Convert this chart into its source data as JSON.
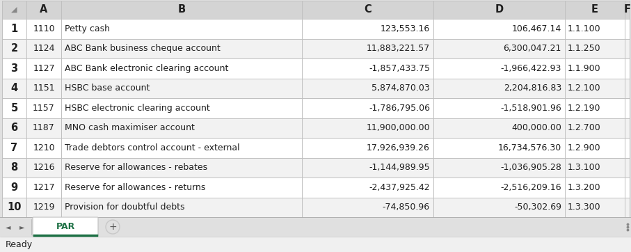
{
  "col_headers": [
    "A",
    "B",
    "C",
    "D",
    "E",
    "F"
  ],
  "row_numbers": [
    "1",
    "2",
    "3",
    "4",
    "5",
    "6",
    "7",
    "8",
    "9",
    "10"
  ],
  "col_a": [
    "1110",
    "1124",
    "1127",
    "1151",
    "1157",
    "1187",
    "1210",
    "1216",
    "1217",
    "1219"
  ],
  "col_b": [
    "Petty cash",
    "ABC Bank business cheque account",
    "ABC Bank electronic clearing account",
    "HSBC base account",
    "HSBC electronic clearing account",
    "MNO cash maximiser account",
    "Trade debtors control account - external",
    "Reserve for allowances - rebates",
    "Reserve for allowances - returns",
    "Provision for doubtful debts"
  ],
  "col_c": [
    "123,553.16",
    "11,883,221.57",
    "-1,857,433.75",
    "5,874,870.03",
    "-1,786,795.06",
    "11,900,000.00",
    "17,926,939.26",
    "-1,144,989.95",
    "-2,437,925.42",
    "-74,850.96"
  ],
  "col_d": [
    "106,467.14",
    "6,300,047.21",
    "-1,966,422.93",
    "2,204,816.83",
    "-1,518,901.96",
    "400,000.00",
    "16,734,576.30",
    "-1,036,905.28",
    "-2,516,209.16",
    "-50,302.69"
  ],
  "col_e": [
    "1.1.100",
    "1.1.250",
    "1.1.900",
    "1.2.100",
    "1.2.190",
    "1.2.700",
    "1.2.900",
    "1.3.100",
    "1.3.200",
    "1.3.300"
  ],
  "header_bg": "#d4d4d4",
  "row_bg_white": "#ffffff",
  "row_bg_gray": "#f2f2f2",
  "grid_color": "#c0c0c0",
  "header_font_color": "#1f1f1f",
  "data_font_color": "#1f1f1f",
  "tab_active_color": "#1e7145",
  "tab_label": "PAR",
  "status_bar_text": "Ready",
  "figure_bg": "#e0e0e0",
  "tab_bar_bg": "#e0e0e0",
  "status_bar_bg": "#f0f0f0",
  "font_size": 9.0,
  "header_font_size": 10.5,
  "row_num_font_size": 10.5
}
